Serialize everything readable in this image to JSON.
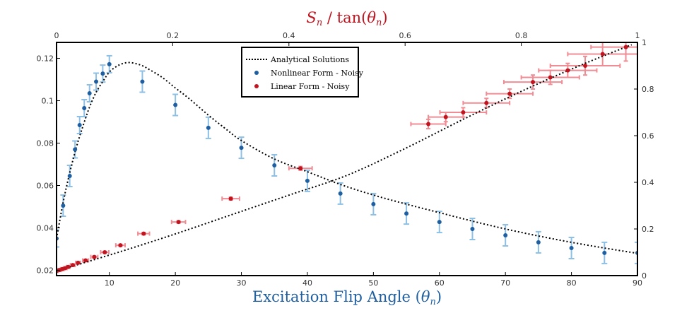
{
  "chart_data": {
    "type": "scatter",
    "x_axis_bottom": {
      "label_main": "Excitation Flip Angle (",
      "label_symbol": "θ",
      "label_sub": "n",
      "label_close": ")",
      "range": [
        2,
        90
      ],
      "ticks": [
        10,
        20,
        30,
        40,
        50,
        60,
        70,
        80,
        90
      ],
      "tick_labels": [
        "10",
        "20",
        "30",
        "40",
        "50",
        "60",
        "70",
        "80",
        "90"
      ]
    },
    "y_axis_left": {
      "range": [
        0.0175,
        0.1275
      ],
      "ticks": [
        0.02,
        0.04,
        0.06,
        0.08,
        0.1,
        0.12
      ],
      "tick_labels": [
        "0.02",
        "0.04",
        "0.06",
        "0.08",
        "0.1",
        "0.12"
      ]
    },
    "x_axis_top": {
      "label_main_s": "S",
      "label_main_sub": "n",
      "label_mid": " / tan(",
      "label_symbol": "θ",
      "label_sub": "n",
      "label_close": ")",
      "range": [
        0,
        1
      ],
      "ticks": [
        0,
        0.2,
        0.4,
        0.6,
        0.8,
        1
      ],
      "tick_labels": [
        "0",
        "0.2",
        "0.4",
        "0.6",
        "0.8",
        "1"
      ]
    },
    "y_axis_right": {
      "range": [
        0,
        1
      ],
      "ticks": [
        0,
        0.2,
        0.4,
        0.6,
        0.8,
        1
      ],
      "tick_labels": [
        "0",
        "0.2",
        "0.4",
        "0.6",
        "0.8",
        "1"
      ]
    },
    "legend": {
      "placement": "top-center",
      "entries": [
        "Analytical Solutions",
        "Nonlinear Form - Noisy",
        "Linear Form - Noisy"
      ]
    },
    "colors": {
      "nonlinear_point": "#1f5fa0",
      "nonlinear_error": "#8ec0e6",
      "linear_point": "#c0141f",
      "linear_error": "#f08c94",
      "analytical": "#000000",
      "top_axis_title": "#c0141f",
      "bottom_axis_title": "#1f5fa0"
    },
    "analytical_nonlinear": {
      "x": [
        2,
        3,
        4,
        5,
        6,
        7,
        8,
        9,
        10,
        11,
        12,
        13,
        14,
        15,
        16,
        18,
        20,
        22,
        25,
        28,
        30,
        35,
        40,
        45,
        50,
        55,
        60,
        65,
        70,
        75,
        80,
        85,
        90
      ],
      "y": [
        0.035,
        0.052,
        0.066,
        0.078,
        0.088,
        0.097,
        0.104,
        0.109,
        0.1135,
        0.116,
        0.1175,
        0.118,
        0.1175,
        0.1165,
        0.1148,
        0.111,
        0.106,
        0.1012,
        0.0932,
        0.0858,
        0.0812,
        0.0725,
        0.0665,
        0.0605,
        0.0555,
        0.0512,
        0.0472,
        0.0432,
        0.0395,
        0.0362,
        0.0332,
        0.0305,
        0.028
      ]
    },
    "nonlinear_noisy": {
      "x": [
        2,
        3,
        4,
        4.8,
        5.5,
        6.2,
        7,
        8,
        9,
        10,
        15,
        20,
        25,
        30,
        35,
        40,
        45,
        50,
        55,
        60,
        65,
        70,
        75,
        80,
        85,
        90
      ],
      "y": [
        0.035,
        0.0505,
        0.0645,
        0.077,
        0.0885,
        0.0965,
        0.1035,
        0.109,
        0.1128,
        0.1172,
        0.109,
        0.098,
        0.0872,
        0.0778,
        0.0695,
        0.0622,
        0.0562,
        0.0512,
        0.0468,
        0.0428,
        0.0395,
        0.0365,
        0.0332,
        0.0305,
        0.0282,
        0.0282
      ],
      "y_err": [
        0.004,
        0.005,
        0.005,
        0.004,
        0.004,
        0.004,
        0.004,
        0.004,
        0.004,
        0.004,
        0.005,
        0.005,
        0.005,
        0.005,
        0.005,
        0.005,
        0.005,
        0.005,
        0.005,
        0.005,
        0.005,
        0.005,
        0.005,
        0.005,
        0.005,
        0.005
      ]
    },
    "analytical_linear": {
      "x": [
        0,
        0.1,
        0.2,
        0.3,
        0.4,
        0.5,
        0.6,
        0.7,
        0.8,
        0.9,
        0.99
      ],
      "y": [
        0.02,
        0.095,
        0.175,
        0.26,
        0.345,
        0.43,
        0.545,
        0.67,
        0.79,
        0.9,
        0.99
      ]
    },
    "linear_noisy": {
      "x": [
        0.0,
        0.005,
        0.01,
        0.015,
        0.02,
        0.028,
        0.037,
        0.05,
        0.065,
        0.083,
        0.11,
        0.15,
        0.21,
        0.3,
        0.42,
        0.64,
        0.67,
        0.7,
        0.74,
        0.78,
        0.82,
        0.85,
        0.88,
        0.91,
        0.94,
        0.98
      ],
      "y": [
        0.02,
        0.024,
        0.028,
        0.032,
        0.037,
        0.045,
        0.055,
        0.065,
        0.08,
        0.1,
        0.13,
        0.18,
        0.23,
        0.33,
        0.46,
        0.65,
        0.68,
        0.7,
        0.74,
        0.78,
        0.83,
        0.85,
        0.88,
        0.9,
        0.95,
        0.98
      ],
      "x_err": [
        0.003,
        0.003,
        0.003,
        0.003,
        0.003,
        0.004,
        0.004,
        0.005,
        0.006,
        0.007,
        0.008,
        0.01,
        0.012,
        0.015,
        0.02,
        0.03,
        0.03,
        0.04,
        0.04,
        0.04,
        0.05,
        0.05,
        0.05,
        0.06,
        0.06,
        0.06
      ],
      "y_err": [
        0.004,
        0.004,
        0.004,
        0.004,
        0.004,
        0.004,
        0.004,
        0.004,
        0.004,
        0.004,
        0.004,
        0.005,
        0.005,
        0.006,
        0.008,
        0.02,
        0.02,
        0.02,
        0.02,
        0.02,
        0.03,
        0.03,
        0.03,
        0.04,
        0.05,
        0.06
      ]
    }
  }
}
